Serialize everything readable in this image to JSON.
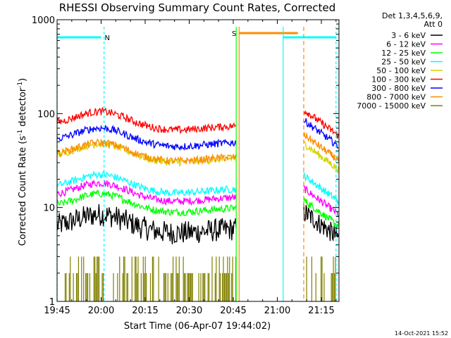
{
  "chart_data": {
    "type": "line",
    "title": "RHESSI Observing Summary Count Rates, Corrected",
    "xlabel": "Start Time (06-Apr-07 19:44:02)",
    "ylabel_main": "Corrected Count Rate (s",
    "ylabel_sup1": "-1",
    "ylabel_mid": " detector",
    "ylabel_sup2": "-1",
    "ylabel_end": ")",
    "yscale": "log",
    "ylim": [
      1,
      1000
    ],
    "xlim": [
      "19:45",
      "21:21"
    ],
    "x_ticks": [
      "19:45",
      "20:00",
      "20:15",
      "20:30",
      "20:45",
      "21:00",
      "21:15"
    ],
    "y_ticks": [
      "1",
      "10",
      "100",
      "1000"
    ],
    "legend_header": [
      "Det 1,3,4,5,6,9,",
      "Att 0"
    ],
    "series": [
      {
        "name": "3 - 6 keV",
        "color": "#000000",
        "level_a": 6.0,
        "level_b": 9.0
      },
      {
        "name": "6 - 12 keV",
        "color": "#ff00ff",
        "level_a": 13.0,
        "level_b": 16.0
      },
      {
        "name": "12 - 25 keV",
        "color": "#00ff00",
        "level_a": 10.0,
        "level_b": 12.0
      },
      {
        "name": "25 - 50 keV",
        "color": "#00ffff",
        "level_a": 16.0,
        "level_b": 22.0
      },
      {
        "name": "50 - 100 keV",
        "color": "#d4d400",
        "level_a": 34.0,
        "level_b": 48.0
      },
      {
        "name": "100 - 300 keV",
        "color": "#ff0000",
        "level_a": 75.0,
        "level_b": 110.0
      },
      {
        "name": "300 - 800 keV",
        "color": "#0000ff",
        "level_a": 50.0,
        "level_b": 85.0
      },
      {
        "name": "800 - 7000 keV",
        "color": "#ff8c00",
        "level_a": 35.0,
        "level_b": 60.0
      },
      {
        "name": "7000 - 15000 keV",
        "color": "#808000",
        "level_a": 1.5,
        "level_b": 1.5
      }
    ],
    "flags": [
      {
        "label": "N",
        "color": "#00ffff",
        "start": "19:45",
        "end": "20:00",
        "value": 650
      },
      {
        "label": "S",
        "color": "#ff8c00",
        "start": "20:47",
        "end": "21:07",
        "value": 720
      },
      {
        "label": "",
        "color": "#00ffff",
        "start": "21:02",
        "end": "21:20",
        "value": 650
      }
    ],
    "gap": {
      "start": "20:46",
      "end": "21:09"
    },
    "grid": false,
    "legend_position": "top-right"
  },
  "footer_timestamp": "14-Oct-2021 15:52"
}
